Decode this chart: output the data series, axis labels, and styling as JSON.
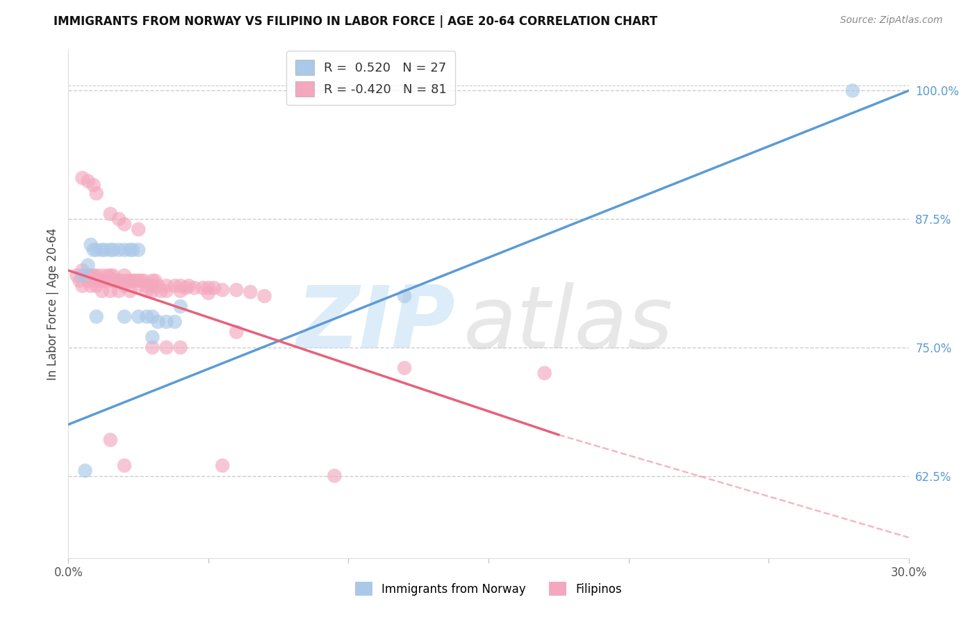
{
  "title": "IMMIGRANTS FROM NORWAY VS FILIPINO IN LABOR FORCE | AGE 20-64 CORRELATION CHART",
  "source": "Source: ZipAtlas.com",
  "ylabel": "In Labor Force | Age 20-64",
  "xlim": [
    0.0,
    0.3
  ],
  "ylim": [
    0.545,
    1.04
  ],
  "xticks": [
    0.0,
    0.05,
    0.1,
    0.15,
    0.2,
    0.25,
    0.3
  ],
  "xticklabels": [
    "0.0%",
    "",
    "",
    "",
    "",
    "",
    "30.0%"
  ],
  "right_yticks": [
    0.625,
    0.75,
    0.875,
    1.0
  ],
  "right_yticklabels": [
    "62.5%",
    "75.0%",
    "87.5%",
    "100.0%"
  ],
  "norway_color": "#aac8e8",
  "filipino_color": "#f4a8be",
  "norway_line_color": "#5b9bd5",
  "filipino_line_color": "#e8607a",
  "norway_line": [
    0.0,
    0.3,
    0.675,
    1.0
  ],
  "filipino_line_solid": [
    0.0,
    0.175,
    0.825,
    0.665
  ],
  "filipino_line_dash": [
    0.175,
    0.3,
    0.665,
    0.565
  ],
  "norway_x": [
    0.005,
    0.007,
    0.008,
    0.009,
    0.01,
    0.01,
    0.012,
    0.013,
    0.015,
    0.016,
    0.018,
    0.02,
    0.02,
    0.022,
    0.023,
    0.025,
    0.025,
    0.028,
    0.03,
    0.03,
    0.032,
    0.035,
    0.038,
    0.04,
    0.12,
    0.28,
    0.006
  ],
  "norway_y": [
    0.82,
    0.83,
    0.85,
    0.845,
    0.845,
    0.78,
    0.845,
    0.845,
    0.845,
    0.845,
    0.845,
    0.845,
    0.78,
    0.845,
    0.845,
    0.845,
    0.78,
    0.78,
    0.78,
    0.76,
    0.775,
    0.775,
    0.775,
    0.79,
    0.8,
    1.0,
    0.63
  ],
  "filipino_x": [
    0.003,
    0.004,
    0.005,
    0.005,
    0.006,
    0.007,
    0.007,
    0.008,
    0.008,
    0.009,
    0.009,
    0.01,
    0.01,
    0.011,
    0.012,
    0.012,
    0.012,
    0.013,
    0.014,
    0.015,
    0.015,
    0.015,
    0.016,
    0.016,
    0.017,
    0.018,
    0.018,
    0.019,
    0.02,
    0.02,
    0.021,
    0.022,
    0.022,
    0.023,
    0.024,
    0.025,
    0.025,
    0.026,
    0.027,
    0.028,
    0.028,
    0.03,
    0.03,
    0.03,
    0.031,
    0.032,
    0.033,
    0.035,
    0.035,
    0.038,
    0.04,
    0.04,
    0.042,
    0.043,
    0.045,
    0.048,
    0.05,
    0.05,
    0.052,
    0.055,
    0.06,
    0.065,
    0.07,
    0.005,
    0.007,
    0.009,
    0.01,
    0.015,
    0.018,
    0.02,
    0.025,
    0.12,
    0.06,
    0.03,
    0.035,
    0.04,
    0.015,
    0.02,
    0.17,
    0.095,
    0.055
  ],
  "filipino_y": [
    0.82,
    0.815,
    0.825,
    0.81,
    0.82,
    0.815,
    0.82,
    0.82,
    0.81,
    0.815,
    0.82,
    0.82,
    0.81,
    0.815,
    0.82,
    0.815,
    0.805,
    0.815,
    0.82,
    0.82,
    0.815,
    0.805,
    0.815,
    0.82,
    0.815,
    0.815,
    0.805,
    0.815,
    0.82,
    0.81,
    0.815,
    0.815,
    0.805,
    0.815,
    0.815,
    0.815,
    0.81,
    0.815,
    0.815,
    0.81,
    0.805,
    0.815,
    0.81,
    0.805,
    0.815,
    0.81,
    0.805,
    0.81,
    0.805,
    0.81,
    0.81,
    0.805,
    0.808,
    0.81,
    0.808,
    0.808,
    0.808,
    0.803,
    0.808,
    0.806,
    0.806,
    0.804,
    0.8,
    0.915,
    0.912,
    0.908,
    0.9,
    0.88,
    0.875,
    0.87,
    0.865,
    0.73,
    0.765,
    0.75,
    0.75,
    0.75,
    0.66,
    0.635,
    0.725,
    0.625,
    0.635
  ]
}
